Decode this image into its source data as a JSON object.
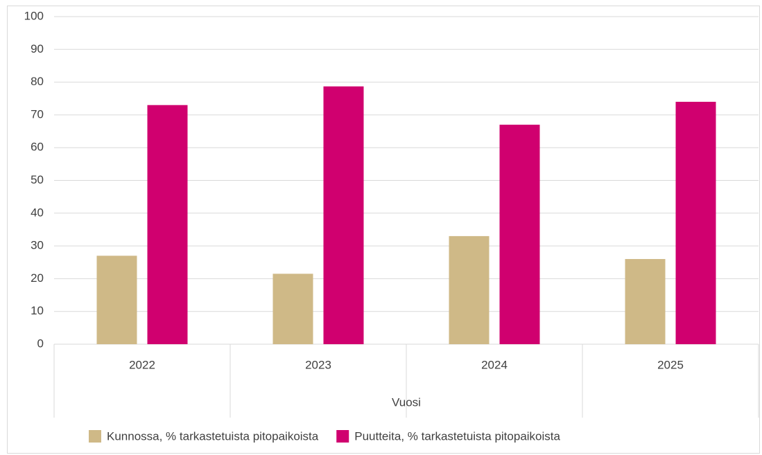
{
  "chart_data": {
    "type": "bar",
    "categories": [
      "2022",
      "2023",
      "2024",
      "2025"
    ],
    "x_label": "Vuosi",
    "series": [
      {
        "name": "Kunnossa, % tarkastetuista pitopaikoista",
        "color": "#cfb987",
        "values": [
          27,
          21.5,
          33,
          26
        ]
      },
      {
        "name": "Puutteita, % tarkastetuista pitopaikoista",
        "color": "#d0006f",
        "values": [
          73,
          78.7,
          67,
          74
        ]
      }
    ],
    "ylim": [
      0,
      100
    ],
    "yticks": [
      0,
      10,
      20,
      30,
      40,
      50,
      60,
      70,
      80,
      90,
      100
    ],
    "grid": true,
    "legend": "bottom"
  }
}
